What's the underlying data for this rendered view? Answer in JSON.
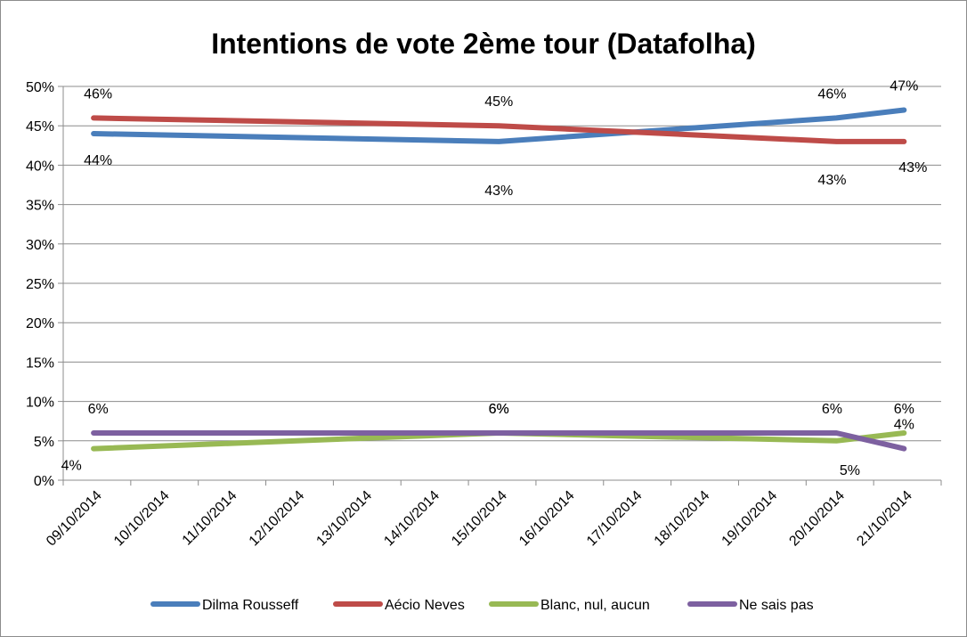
{
  "chart_data": {
    "type": "line",
    "title": "Intentions de vote 2ème tour (Datafolha)",
    "xlabel": "",
    "ylabel": "",
    "categories": [
      "09/10/2014",
      "10/10/2014",
      "11/10/2014",
      "12/10/2014",
      "13/10/2014",
      "14/10/2014",
      "15/10/2014",
      "16/10/2014",
      "17/10/2014",
      "18/10/2014",
      "19/10/2014",
      "20/10/2014",
      "21/10/2014"
    ],
    "ylim": [
      0,
      50
    ],
    "yticks": [
      "0%",
      "5%",
      "10%",
      "15%",
      "20%",
      "25%",
      "30%",
      "35%",
      "40%",
      "45%",
      "50%"
    ],
    "grid": true,
    "legend_position": "bottom",
    "series": [
      {
        "name": "Dilma Rousseff",
        "color": "#4a7ebb",
        "points": [
          {
            "date": "09/10/2014",
            "value": 44
          },
          {
            "date": "15/10/2014",
            "value": 43
          },
          {
            "date": "20/10/2014",
            "value": 46
          },
          {
            "date": "21/10/2014",
            "value": 47
          }
        ],
        "labels": [
          "44%",
          "43%",
          "46%",
          "47%"
        ]
      },
      {
        "name": "Aécio Neves",
        "color": "#be4b48",
        "points": [
          {
            "date": "09/10/2014",
            "value": 46
          },
          {
            "date": "15/10/2014",
            "value": 45
          },
          {
            "date": "20/10/2014",
            "value": 43
          },
          {
            "date": "21/10/2014",
            "value": 43
          }
        ],
        "labels": [
          "46%",
          "45%",
          "43%",
          "43%"
        ]
      },
      {
        "name": "Blanc, nul, aucun",
        "color": "#98b954",
        "points": [
          {
            "date": "09/10/2014",
            "value": 4
          },
          {
            "date": "15/10/2014",
            "value": 6
          },
          {
            "date": "20/10/2014",
            "value": 5
          },
          {
            "date": "21/10/2014",
            "value": 6
          }
        ],
        "labels": [
          "4%",
          "6%",
          "5%",
          "6%"
        ]
      },
      {
        "name": "Ne sais pas",
        "color": "#7d60a0",
        "points": [
          {
            "date": "09/10/2014",
            "value": 6
          },
          {
            "date": "15/10/2014",
            "value": 6
          },
          {
            "date": "20/10/2014",
            "value": 6
          },
          {
            "date": "21/10/2014",
            "value": 4
          }
        ],
        "labels": [
          "6%",
          "6%",
          "6%",
          "4%"
        ]
      }
    ]
  }
}
